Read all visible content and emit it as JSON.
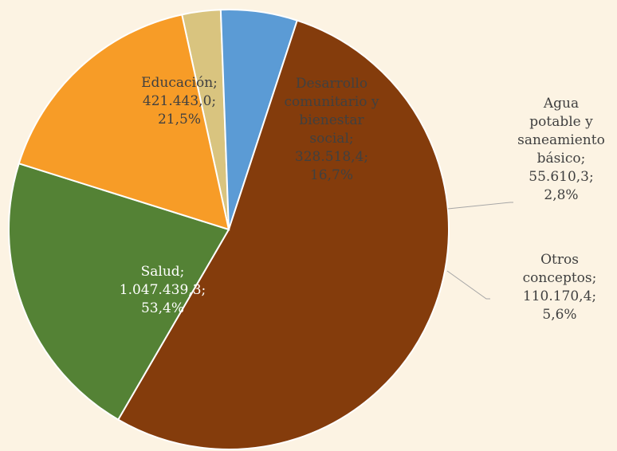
{
  "chart_data": {
    "type": "pie",
    "title": "",
    "slices": [
      {
        "name": "Agua potable y saneamiento básico",
        "value": 55610.3,
        "percent": 2.8,
        "label_lines": [
          "Agua",
          "potable y",
          "saneamiento",
          "básico;",
          "55.610,3;",
          "2,8%"
        ],
        "color": "#d9c47f"
      },
      {
        "name": "Otros conceptos",
        "value": 110170.4,
        "percent": 5.6,
        "label_lines": [
          "Otros",
          "conceptos;",
          "110.170,4;",
          "5,6%"
        ],
        "color": "#5b9bd5"
      },
      {
        "name": "Salud",
        "value": 1047439.3,
        "percent": 53.4,
        "label_lines": [
          "Salud;",
          "1.047.439,3;",
          "53,4%"
        ],
        "color": "#843c0c"
      },
      {
        "name": "Educación",
        "value": 421443.0,
        "percent": 21.5,
        "label_lines": [
          "Educación;",
          "421.443,0;",
          "21,5%"
        ],
        "color": "#548235"
      },
      {
        "name": "Desarrollo comunitario y bienestar social",
        "value": 328518.4,
        "percent": 16.7,
        "label_lines": [
          "Desarrollo",
          "comunitario y",
          "bienestar",
          "social;",
          "328.518,4;",
          "16,7%"
        ],
        "color": "#f79c27"
      }
    ],
    "background": "#fcf3e3"
  }
}
